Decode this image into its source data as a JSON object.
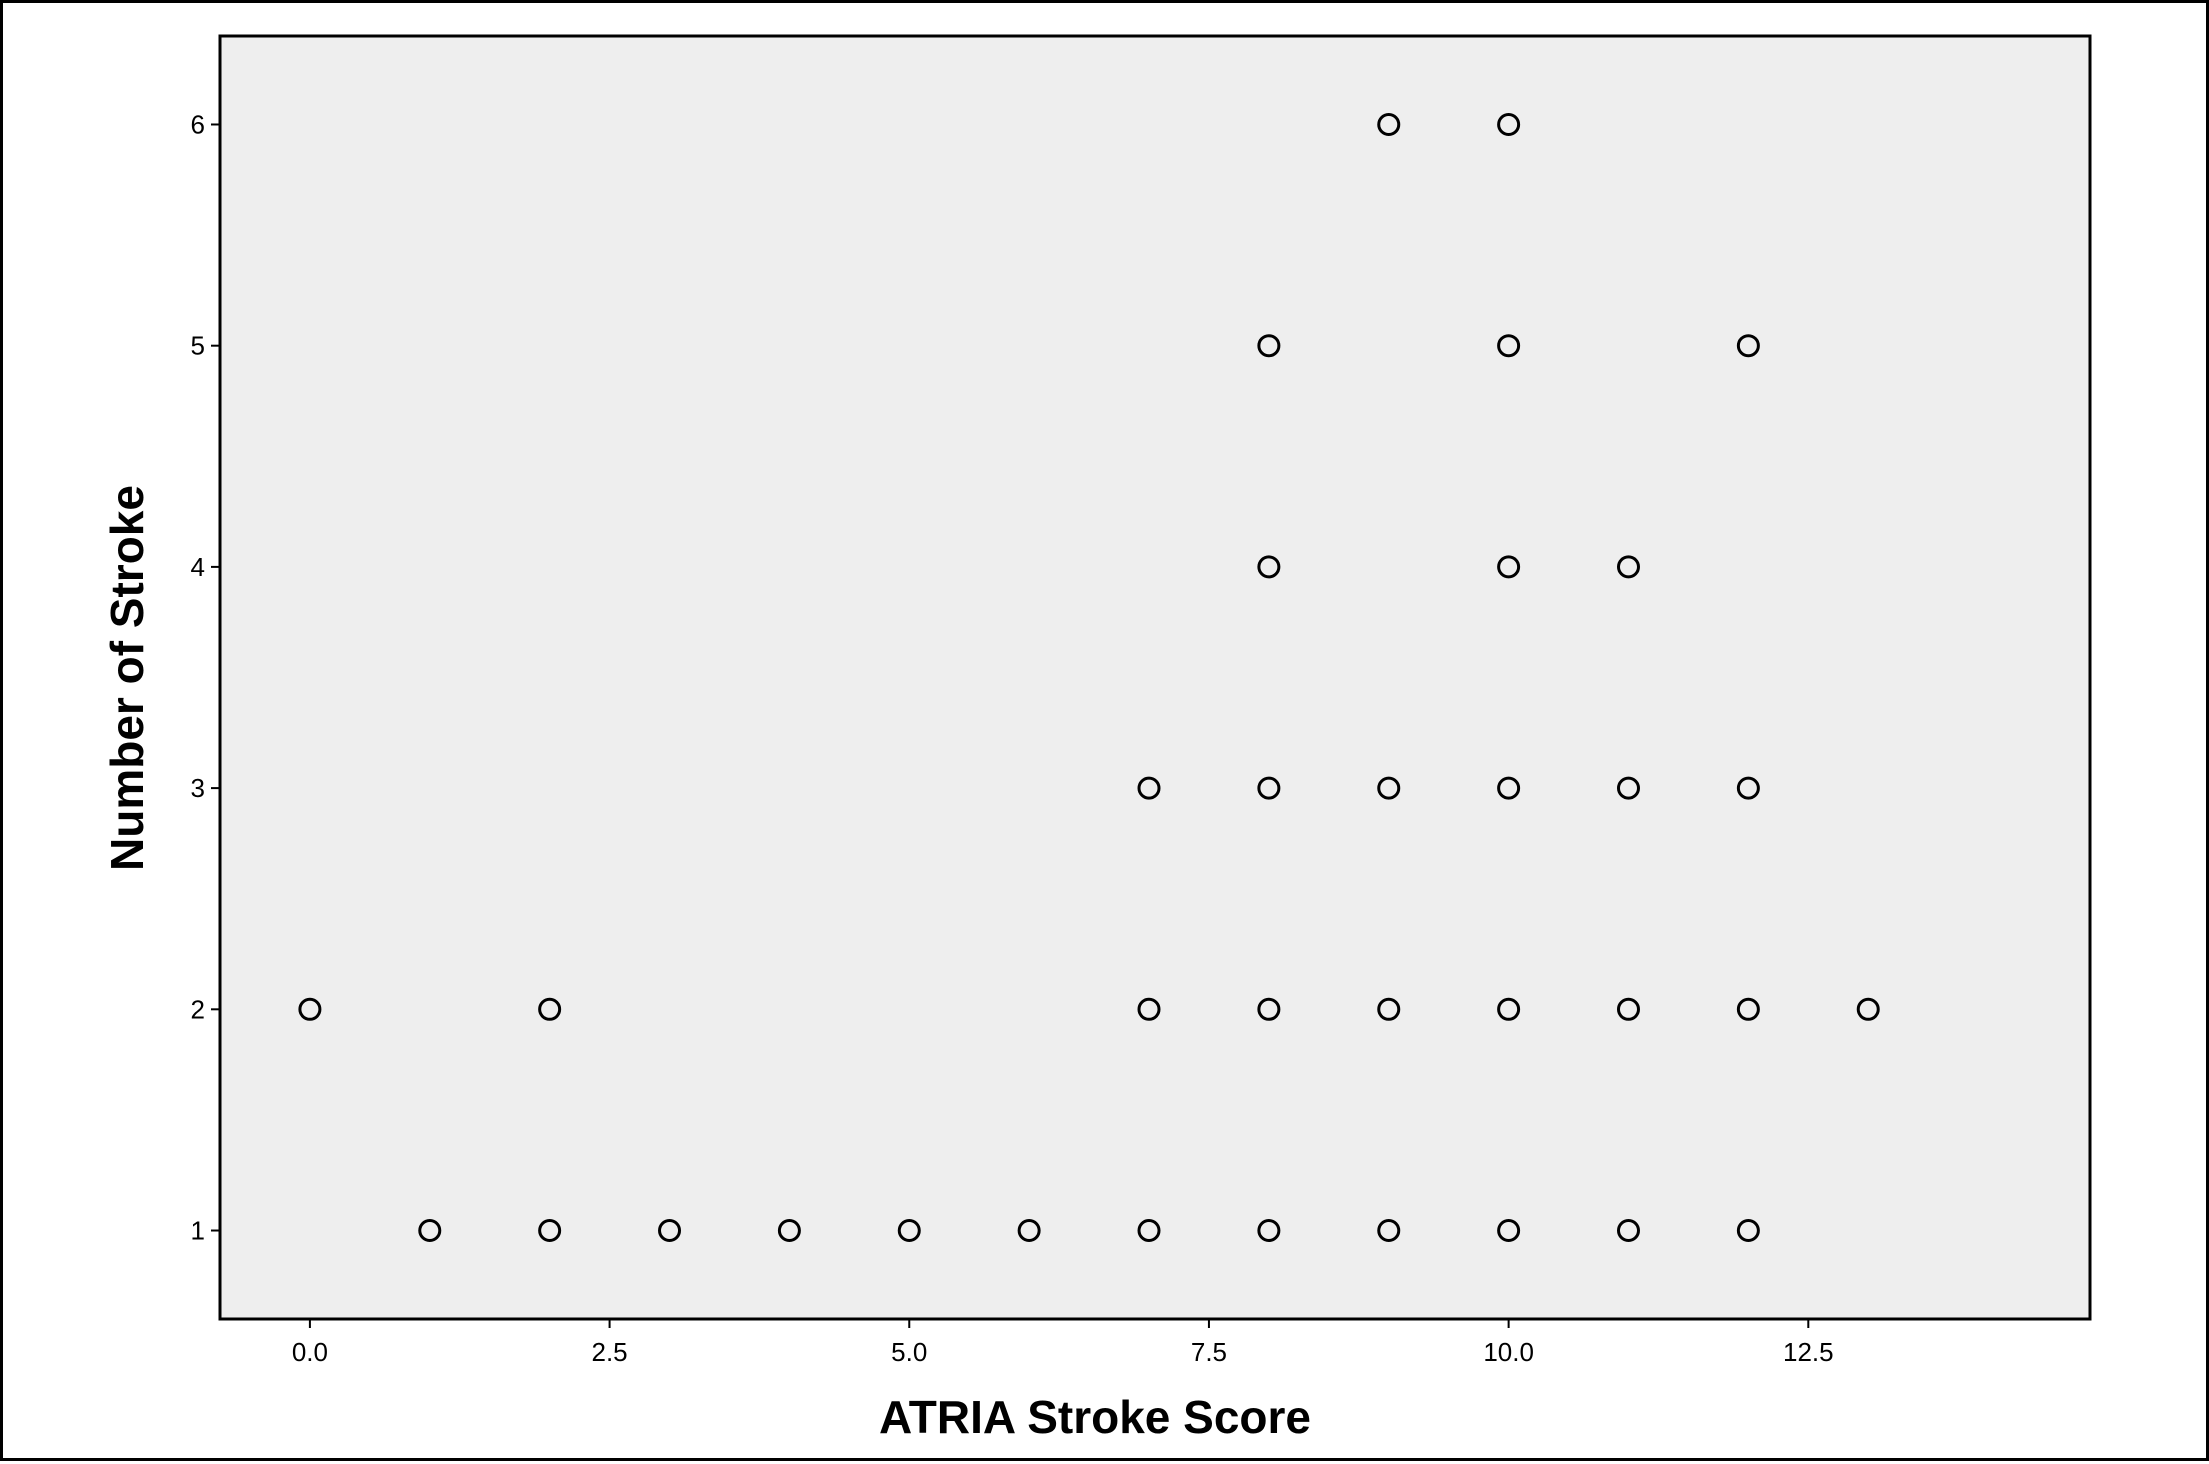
{
  "chart_data": {
    "type": "scatter",
    "title": "",
    "xlabel": "ATRIA Stroke Score",
    "ylabel": "Number of Stroke",
    "xlim": [
      -0.75,
      14.85
    ],
    "ylim": [
      0.6,
      6.4
    ],
    "xticks": [
      0,
      2.5,
      5,
      7.5,
      10,
      12.5
    ],
    "xtick_labels": [
      "0.0",
      "2.5",
      "5.0",
      "7.5",
      "10.0",
      "12.5"
    ],
    "yticks": [
      1,
      2,
      3,
      4,
      5,
      6
    ],
    "ytick_labels": [
      "1",
      "2",
      "3",
      "4",
      "5",
      "6"
    ],
    "grid": false,
    "legend": "none",
    "plot_background": "#eeeeee",
    "marker": "open-circle",
    "marker_color": "#000000",
    "points": [
      {
        "x": 0,
        "y": 2
      },
      {
        "x": 2,
        "y": 2
      },
      {
        "x": 7,
        "y": 2
      },
      {
        "x": 8,
        "y": 2
      },
      {
        "x": 9,
        "y": 2
      },
      {
        "x": 10,
        "y": 2
      },
      {
        "x": 11,
        "y": 2
      },
      {
        "x": 12,
        "y": 2
      },
      {
        "x": 13,
        "y": 2
      },
      {
        "x": 1,
        "y": 1
      },
      {
        "x": 2,
        "y": 1
      },
      {
        "x": 3,
        "y": 1
      },
      {
        "x": 4,
        "y": 1
      },
      {
        "x": 5,
        "y": 1
      },
      {
        "x": 6,
        "y": 1
      },
      {
        "x": 7,
        "y": 1
      },
      {
        "x": 8,
        "y": 1
      },
      {
        "x": 9,
        "y": 1
      },
      {
        "x": 10,
        "y": 1
      },
      {
        "x": 11,
        "y": 1
      },
      {
        "x": 12,
        "y": 1
      },
      {
        "x": 7,
        "y": 3
      },
      {
        "x": 8,
        "y": 3
      },
      {
        "x": 9,
        "y": 3
      },
      {
        "x": 10,
        "y": 3
      },
      {
        "x": 11,
        "y": 3
      },
      {
        "x": 12,
        "y": 3
      },
      {
        "x": 8,
        "y": 4
      },
      {
        "x": 10,
        "y": 4
      },
      {
        "x": 11,
        "y": 4
      },
      {
        "x": 8,
        "y": 5
      },
      {
        "x": 10,
        "y": 5
      },
      {
        "x": 12,
        "y": 5
      },
      {
        "x": 9,
        "y": 6
      },
      {
        "x": 10,
        "y": 6
      }
    ]
  }
}
